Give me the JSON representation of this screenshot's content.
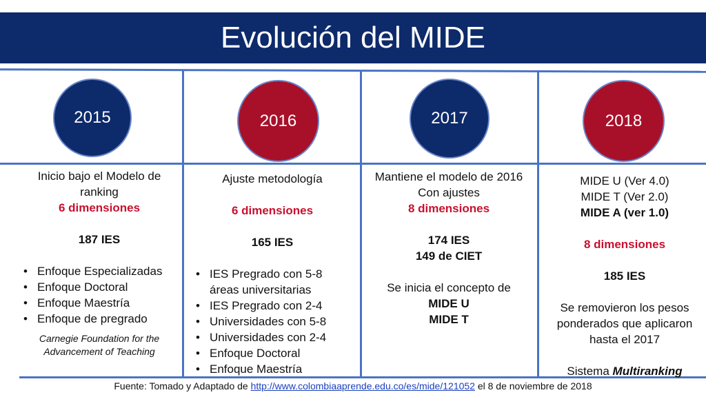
{
  "title": "Evolución del MIDE",
  "years": [
    "2015",
    "2016",
    "2017",
    "2018"
  ],
  "col2015": {
    "intro": "Inicio bajo el Modelo de ranking",
    "dimensions": "6 dimensiones",
    "ies": "187 IES",
    "bullets": [
      "Enfoque Especializadas",
      "Enfoque Doctoral",
      "Enfoque Maestría",
      "Enfoque de pregrado"
    ],
    "note": "Carnegie Foundation for the Advancement of Teaching"
  },
  "col2016": {
    "intro": "Ajuste metodología",
    "dimensions": "6 dimensiones",
    "ies": "165 IES",
    "bullets": [
      "IES Pregrado con 5-8 áreas universitarias",
      "IES Pregrado con 2-4",
      "Universidades con 5-8",
      "Universidades con 2-4",
      "Enfoque Doctoral",
      "Enfoque Maestría"
    ]
  },
  "col2017": {
    "intro": "Mantiene el modelo de 2016 Con ajustes",
    "dimensions": "8 dimensiones",
    "ies": "174 IES",
    "ciet": "149 de CIET",
    "concept": "Se inicia el concepto de",
    "mide_u": "MIDE U",
    "mide_t": "MIDE T"
  },
  "col2018": {
    "line1": "MIDE U (Ver 4.0)",
    "line2": "MIDE T (Ver 2.0)",
    "line3": "MIDE A (ver 1.0)",
    "dimensions": "8 dimensiones",
    "ies": "185 IES",
    "removed": "Se removieron los pesos ponderados que aplicaron hasta el 2017",
    "system_prefix": "Sistema",
    "system_name": "Multiranking"
  },
  "footer": {
    "prefix": "Fuente: Tomado y Adaptado de",
    "link": "http://www.colombiaaprende.edu.co/es/mide/121052",
    "suffix": "el 8 de noviembre de 2018"
  },
  "colors": {
    "navy": "#0d2a6b",
    "red": "#a8102a",
    "line": "#4a73c4",
    "accent_text": "#c8102e"
  }
}
